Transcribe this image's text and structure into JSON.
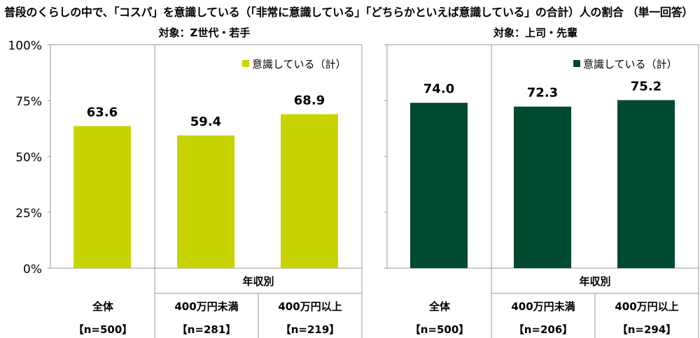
{
  "title": "普段のくらしの中で、「コスパ」を意識している（「非常に意識している」「どちらかといえば意識している」の合計）人の割合 （単一回答）",
  "y_ticks": [
    "0%",
    "25%",
    "50%",
    "75%",
    "100%"
  ],
  "colors": {
    "panel1_bar": "#c8d400",
    "panel2_bar": "#004a2f",
    "axis": "#999999"
  },
  "chart_data": [
    {
      "type": "bar",
      "subtitle": "対象：Z世代・若手",
      "legend": "意識している（計）",
      "legend_position": "top-right",
      "group_label": "年収別",
      "categories": [
        "全体",
        "400万円未満",
        "400万円以上"
      ],
      "n_labels": [
        "【n=500】",
        "【n=281】",
        "【n=219】"
      ],
      "values": [
        63.6,
        59.4,
        68.9
      ],
      "value_labels": [
        "63.6",
        "59.4",
        "68.9"
      ],
      "ylim": [
        0,
        100
      ],
      "grid": false
    },
    {
      "type": "bar",
      "subtitle": "対象：上司・先輩",
      "legend": "意識している（計）",
      "legend_position": "top-right",
      "group_label": "年収別",
      "categories": [
        "全体",
        "400万円未満",
        "400万円以上"
      ],
      "n_labels": [
        "【n=500】",
        "【n=206】",
        "【n=294】"
      ],
      "values": [
        74.0,
        72.3,
        75.2
      ],
      "value_labels": [
        "74.0",
        "72.3",
        "75.2"
      ],
      "ylim": [
        0,
        100
      ],
      "grid": false
    }
  ]
}
